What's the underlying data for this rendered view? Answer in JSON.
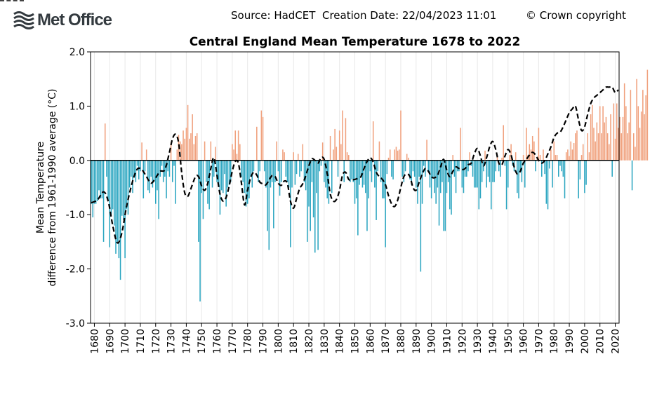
{
  "header": {
    "logo_text": "Met Office",
    "source_text": "Source: HadCET  Creation Date: 22/04/2023 11:01",
    "copyright_text": "© Crown copyright"
  },
  "colors": {
    "warm_bar": "#f0a07c",
    "cool_bar": "#2aa5c0",
    "smooth_line": "#000000",
    "zero_line": "#000000",
    "grid": "#e8e8e8",
    "logo": "#333a3f"
  },
  "chart_data": {
    "type": "bar",
    "title": "Central England Mean Temperature 1678 to 2022",
    "xlabel": "",
    "ylabel": "Mean Temperature\ndifference from 1961-1990 average (°C)",
    "xlim": [
      1677.5,
      2022.5
    ],
    "ylim": [
      -3.0,
      2.0
    ],
    "yticks": [
      -3.0,
      -2.0,
      -1.0,
      0.0,
      1.0,
      2.0
    ],
    "ytick_labels": [
      "-3.0",
      "-2.0",
      "-1.0",
      "0.0",
      "1.0",
      "2.0"
    ],
    "xticks": [
      1680,
      1690,
      1700,
      1710,
      1720,
      1730,
      1740,
      1750,
      1760,
      1770,
      1780,
      1790,
      1800,
      1810,
      1820,
      1830,
      1840,
      1850,
      1860,
      1870,
      1880,
      1890,
      1900,
      1910,
      1920,
      1930,
      1940,
      1950,
      1960,
      1970,
      1980,
      1990,
      2000,
      2010,
      2020
    ],
    "grid": "vertical",
    "legend": "none",
    "start_year": 1678,
    "values": [
      -0.8,
      -1.05,
      -0.8,
      -0.8,
      -0.75,
      -0.55,
      -0.7,
      -0.7,
      -1.5,
      0.68,
      -0.3,
      -0.75,
      -1.6,
      -1.0,
      -0.9,
      -1.2,
      -1.72,
      -1.5,
      -1.8,
      -2.2,
      -1.02,
      -1.1,
      -1.8,
      -0.9,
      -1.0,
      -0.5,
      -0.3,
      -0.6,
      -0.3,
      -0.4,
      -0.1,
      -0.35,
      -0.2,
      0.33,
      -0.7,
      -0.2,
      0.2,
      -0.55,
      -0.6,
      -0.3,
      -0.5,
      -0.4,
      -0.8,
      -0.55,
      -1.08,
      -0.3,
      -0.1,
      -0.4,
      -0.3,
      -0.7,
      -0.2,
      -0.3,
      0.33,
      -0.4,
      -0.1,
      -0.8,
      0.2,
      0.47,
      0.35,
      0.3,
      0.55,
      0.4,
      0.6,
      1.02,
      0.4,
      0.5,
      0.85,
      0.3,
      0.45,
      0.5,
      -1.5,
      -2.6,
      -0.6,
      -1.08,
      0.35,
      -0.4,
      -0.8,
      -0.9,
      0.35,
      -0.5,
      -0.3,
      0.25,
      -0.4,
      -0.45,
      -1.0,
      -0.55,
      -0.6,
      -0.25,
      -0.85,
      -0.5,
      -0.45,
      -0.4,
      0.3,
      0.2,
      0.55,
      0.12,
      0.55,
      0.3,
      -0.3,
      -0.4,
      -0.6,
      -0.85,
      -0.8,
      -0.7,
      -0.3,
      -0.5,
      -0.2,
      0.0,
      0.62,
      -0.4,
      -0.2,
      0.92,
      0.8,
      -0.2,
      -0.5,
      -1.3,
      -1.65,
      -0.5,
      -0.4,
      -1.25,
      -0.4,
      0.35,
      -0.2,
      -0.65,
      -0.4,
      0.2,
      0.15,
      -0.3,
      -0.4,
      -0.5,
      -1.6,
      -0.5,
      0.15,
      -0.45,
      -0.25,
      0.12,
      -0.3,
      -0.2,
      0.3,
      -0.4,
      -0.55,
      -1.5,
      -0.85,
      -1.3,
      -0.4,
      -1.05,
      -1.7,
      -0.6,
      -1.65,
      -0.2,
      -0.1,
      0.33,
      -0.4,
      -0.5,
      -0.7,
      -0.8,
      0.45,
      -0.6,
      0.2,
      0.58,
      0.25,
      -0.3,
      0.55,
      0.3,
      0.92,
      -0.4,
      0.78,
      0.15,
      0.1,
      -0.4,
      -0.35,
      -0.4,
      -0.8,
      -0.7,
      -1.38,
      -0.45,
      -0.3,
      -0.5,
      -0.45,
      -0.6,
      -1.3,
      -0.7,
      -0.2,
      -0.4,
      0.72,
      -0.5,
      -1.1,
      -0.2,
      0.35,
      -0.4,
      -0.7,
      -0.7,
      -1.6,
      -0.25,
      0.05,
      0.2,
      -0.3,
      -0.35,
      0.2,
      0.25,
      0.18,
      0.2,
      0.92,
      -0.3,
      -0.4,
      -0.2,
      0.12,
      0.05,
      -0.35,
      -0.45,
      -0.2,
      -0.3,
      -0.5,
      -0.8,
      -0.3,
      -2.05,
      -0.8,
      -0.1,
      -0.3,
      0.38,
      -0.2,
      -0.5,
      -0.7,
      -0.3,
      -0.6,
      -0.8,
      -0.5,
      -1.2,
      -0.6,
      -0.4,
      -1.3,
      -1.3,
      -0.6,
      -0.4,
      -0.9,
      -1.0,
      0.1,
      -0.3,
      -0.6,
      -0.2,
      -0.2,
      0.6,
      -0.5,
      -0.6,
      -0.3,
      -0.3,
      -0.2,
      0.15,
      -0.1,
      -0.3,
      -0.5,
      -0.5,
      -0.5,
      -0.9,
      -0.7,
      -0.4,
      -0.2,
      0.18,
      -0.5,
      -0.3,
      -0.4,
      -0.9,
      -0.4,
      -0.4,
      -0.2,
      0.08,
      -0.2,
      -0.3,
      0.05,
      0.65,
      -0.1,
      -0.9,
      -0.5,
      0.1,
      0.3,
      -0.1,
      -0.2,
      0.15,
      -0.6,
      -0.7,
      -0.2,
      -0.4,
      0.1,
      -0.5,
      0.6,
      0.1,
      0.3,
      0.2,
      0.45,
      0.35,
      -0.2,
      0.05,
      0.6,
      0.1,
      -0.3,
      0.2,
      -0.25,
      -0.8,
      -0.9,
      -0.15,
      0.2,
      -0.5,
      0.35,
      0.1,
      0.1,
      -0.3,
      -0.1,
      -0.2,
      -0.3,
      -0.7,
      0.15,
      0.2,
      0.08,
      0.35,
      0.2,
      0.32,
      0.5,
      0.55,
      -0.7,
      -0.35,
      0.1,
      0.3,
      -0.6,
      -0.45,
      0.5,
      0.15,
      0.85,
      1.02,
      0.6,
      0.35,
      0.7,
      0.5,
      1.0,
      0.5,
      1.0,
      0.7,
      0.8,
      0.5,
      0.3,
      0.85,
      -0.3,
      1.05,
      0.4,
      1.05,
      0.6,
      0.8,
      0.5,
      0.8,
      1.42,
      1.0,
      0.5,
      0.7,
      1.3,
      -0.55,
      0.5,
      0.25,
      1.5,
      1.0,
      0.6,
      0.9,
      1.3,
      0.85,
      1.2,
      1.67
    ],
    "smoothed": [
      [
        1678,
        -0.78
      ],
      [
        1682,
        -0.73
      ],
      [
        1686,
        -0.58
      ],
      [
        1689,
        -0.75
      ],
      [
        1692,
        -1.2
      ],
      [
        1695,
        -1.52
      ],
      [
        1698,
        -1.33
      ],
      [
        1701,
        -0.85
      ],
      [
        1705,
        -0.38
      ],
      [
        1708,
        -0.16
      ],
      [
        1711,
        -0.17
      ],
      [
        1714,
        -0.3
      ],
      [
        1717,
        -0.42
      ],
      [
        1720,
        -0.32
      ],
      [
        1723,
        -0.2
      ],
      [
        1726,
        -0.17
      ],
      [
        1729,
        0.15
      ],
      [
        1731,
        0.4
      ],
      [
        1733,
        0.48
      ],
      [
        1735,
        0.32
      ],
      [
        1737,
        -0.23
      ],
      [
        1739,
        -0.6
      ],
      [
        1741,
        -0.66
      ],
      [
        1743,
        -0.52
      ],
      [
        1746,
        -0.3
      ],
      [
        1748,
        -0.3
      ],
      [
        1750,
        -0.47
      ],
      [
        1752,
        -0.55
      ],
      [
        1754,
        -0.42
      ],
      [
        1756,
        -0.15
      ],
      [
        1758,
        0.05
      ],
      [
        1760,
        -0.27
      ],
      [
        1762,
        -0.62
      ],
      [
        1764,
        -0.75
      ],
      [
        1766,
        -0.68
      ],
      [
        1768,
        -0.47
      ],
      [
        1770,
        -0.2
      ],
      [
        1772,
        -0.02
      ],
      [
        1774,
        -0.05
      ],
      [
        1776,
        -0.42
      ],
      [
        1778,
        -0.82
      ],
      [
        1780,
        -0.55
      ],
      [
        1782,
        -0.32
      ],
      [
        1784,
        -0.22
      ],
      [
        1786,
        -0.27
      ],
      [
        1788,
        -0.4
      ],
      [
        1790,
        -0.43
      ],
      [
        1792,
        -0.45
      ],
      [
        1794,
        -0.36
      ],
      [
        1796,
        -0.28
      ],
      [
        1798,
        -0.3
      ],
      [
        1800,
        -0.42
      ],
      [
        1802,
        -0.46
      ],
      [
        1804,
        -0.38
      ],
      [
        1806,
        -0.43
      ],
      [
        1808,
        -0.75
      ],
      [
        1810,
        -0.88
      ],
      [
        1812,
        -0.7
      ],
      [
        1814,
        -0.52
      ],
      [
        1816,
        -0.43
      ],
      [
        1818,
        -0.28
      ],
      [
        1820,
        -0.1
      ],
      [
        1822,
        0.03
      ],
      [
        1824,
        0.0
      ],
      [
        1826,
        -0.05
      ],
      [
        1828,
        0.05
      ],
      [
        1830,
        0.02
      ],
      [
        1832,
        -0.25
      ],
      [
        1834,
        -0.62
      ],
      [
        1836,
        -0.75
      ],
      [
        1838,
        -0.72
      ],
      [
        1840,
        -0.55
      ],
      [
        1842,
        -0.27
      ],
      [
        1844,
        -0.22
      ],
      [
        1846,
        -0.35
      ],
      [
        1848,
        -0.36
      ],
      [
        1850,
        -0.35
      ],
      [
        1852,
        -0.33
      ],
      [
        1854,
        -0.3
      ],
      [
        1856,
        -0.15
      ],
      [
        1858,
        -0.02
      ],
      [
        1860,
        0.05
      ],
      [
        1862,
        -0.03
      ],
      [
        1864,
        -0.22
      ],
      [
        1866,
        -0.3
      ],
      [
        1868,
        -0.35
      ],
      [
        1870,
        -0.45
      ],
      [
        1872,
        -0.65
      ],
      [
        1874,
        -0.8
      ],
      [
        1876,
        -0.85
      ],
      [
        1878,
        -0.73
      ],
      [
        1880,
        -0.5
      ],
      [
        1882,
        -0.3
      ],
      [
        1884,
        -0.25
      ],
      [
        1886,
        -0.3
      ],
      [
        1888,
        -0.5
      ],
      [
        1890,
        -0.55
      ],
      [
        1892,
        -0.4
      ],
      [
        1894,
        -0.25
      ],
      [
        1896,
        -0.15
      ],
      [
        1898,
        -0.2
      ],
      [
        1900,
        -0.3
      ],
      [
        1902,
        -0.32
      ],
      [
        1904,
        -0.27
      ],
      [
        1906,
        -0.12
      ],
      [
        1908,
        0.02
      ],
      [
        1910,
        -0.18
      ],
      [
        1912,
        -0.3
      ],
      [
        1914,
        -0.2
      ],
      [
        1916,
        -0.12
      ],
      [
        1918,
        -0.15
      ],
      [
        1920,
        -0.17
      ],
      [
        1922,
        -0.15
      ],
      [
        1924,
        -0.08
      ],
      [
        1926,
        -0.05
      ],
      [
        1928,
        0.12
      ],
      [
        1930,
        0.22
      ],
      [
        1932,
        0.08
      ],
      [
        1934,
        -0.1
      ],
      [
        1936,
        0.05
      ],
      [
        1938,
        0.25
      ],
      [
        1940,
        0.35
      ],
      [
        1942,
        0.2
      ],
      [
        1944,
        -0.05
      ],
      [
        1946,
        -0.08
      ],
      [
        1948,
        0.08
      ],
      [
        1950,
        0.2
      ],
      [
        1952,
        0.1
      ],
      [
        1954,
        -0.12
      ],
      [
        1956,
        -0.25
      ],
      [
        1958,
        -0.2
      ],
      [
        1960,
        -0.05
      ],
      [
        1962,
        0.02
      ],
      [
        1964,
        0.1
      ],
      [
        1966,
        0.15
      ],
      [
        1968,
        0.1
      ],
      [
        1970,
        0.0
      ],
      [
        1972,
        -0.05
      ],
      [
        1974,
        0.0
      ],
      [
        1976,
        0.12
      ],
      [
        1978,
        0.25
      ],
      [
        1980,
        0.42
      ],
      [
        1982,
        0.5
      ],
      [
        1984,
        0.52
      ],
      [
        1986,
        0.62
      ],
      [
        1988,
        0.75
      ],
      [
        1990,
        0.88
      ],
      [
        1992,
        0.95
      ],
      [
        1994,
        1.0
      ],
      [
        1996,
        0.75
      ],
      [
        1998,
        0.55
      ],
      [
        2000,
        0.62
      ],
      [
        2002,
        0.85
      ],
      [
        2004,
        1.05
      ],
      [
        2006,
        1.15
      ],
      [
        2008,
        1.2
      ],
      [
        2010,
        1.25
      ],
      [
        2012,
        1.3
      ],
      [
        2014,
        1.35
      ],
      [
        2016,
        1.35
      ],
      [
        2018,
        1.35
      ],
      [
        2020,
        1.25
      ],
      [
        2022,
        1.3
      ]
    ]
  }
}
